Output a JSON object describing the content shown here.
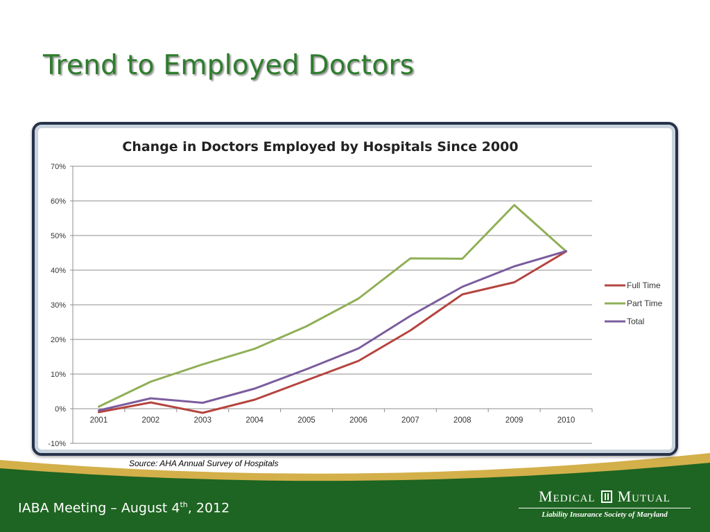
{
  "slide": {
    "title": "Trend to Employed Doctors",
    "source": "Source: AHA Annual Survey of Hospitals"
  },
  "footer": {
    "meeting_prefix": "IABA Meeting – August 4",
    "meeting_sup": "th",
    "meeting_suffix": ", 2012",
    "logo_name_left": "Medical",
    "logo_name_right": "Mutual",
    "logo_tagline": "Liability Insurance Society of Maryland"
  },
  "chart_data": {
    "type": "line",
    "title": "Change in Doctors Employed by Hospitals Since 2000",
    "xlabel": "",
    "ylabel": "",
    "x": [
      "2001",
      "2002",
      "2003",
      "2004",
      "2005",
      "2006",
      "2007",
      "2008",
      "2009",
      "2010"
    ],
    "ylim": [
      -10,
      70
    ],
    "yticks": [
      -10,
      0,
      10,
      20,
      30,
      40,
      50,
      60,
      70
    ],
    "ytick_labels": [
      "-10%",
      "0%",
      "10%",
      "20%",
      "30%",
      "40%",
      "50%",
      "60%",
      "70%"
    ],
    "grid": true,
    "legend_position": "right",
    "series": [
      {
        "name": "Full Time",
        "color": "#b5443f",
        "values": [
          -1,
          1.8,
          -1.2,
          2.6,
          8.2,
          13.8,
          22.6,
          33,
          36.5,
          45.4
        ]
      },
      {
        "name": "Part Time",
        "color": "#8faf55",
        "values": [
          0.6,
          7.8,
          12.8,
          17.3,
          23.8,
          31.8,
          43.4,
          43.3,
          58.8,
          45.4
        ]
      },
      {
        "name": "Total",
        "color": "#7b5c9e",
        "values": [
          -0.5,
          3,
          1.7,
          5.8,
          11.4,
          17.4,
          26.8,
          35.2,
          41.1,
          45.5
        ]
      }
    ]
  }
}
